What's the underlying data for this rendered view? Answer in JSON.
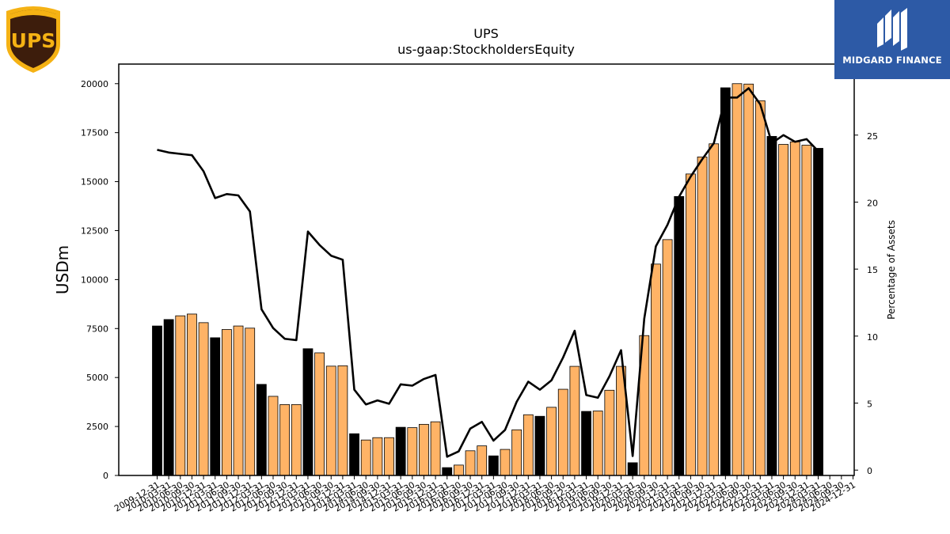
{
  "brand": {
    "left_logo_text": "UPS",
    "right_logo_text": "MIDGARD FINANCE",
    "ups_shield_color": "#3d1d0c",
    "ups_gold_color": "#f5b214",
    "midgard_bg_color": "#2d5aa6"
  },
  "chart_data": {
    "type": "bar",
    "title": "UPS",
    "subtitle": "us-gaap:StockholdersEquity",
    "ylabel": "USDm",
    "y2label": "Percentage of Assets",
    "ylim": [
      0,
      21000
    ],
    "y2lim": [
      -0.4,
      30.3
    ],
    "yticks": [
      0,
      2500,
      5000,
      7500,
      10000,
      12500,
      15000,
      17500,
      20000
    ],
    "y2ticks": [
      0,
      5,
      10,
      15,
      20,
      25
    ],
    "bar_colors": {
      "annual": "#000000",
      "quarterly": "#ffb366",
      "edge": "#000000"
    },
    "line_color": "#000000",
    "categories": [
      "2009-12-31",
      "2010-03-31",
      "2010-06-30",
      "2010-09-30",
      "2010-12-31",
      "2011-03-31",
      "2011-06-30",
      "2011-09-30",
      "2011-12-31",
      "2012-03-31",
      "2012-06-30",
      "2012-09-30",
      "2012-12-31",
      "2013-03-31",
      "2013-06-30",
      "2013-09-30",
      "2013-12-31",
      "2014-03-31",
      "2014-06-30",
      "2014-09-30",
      "2014-12-31",
      "2015-03-31",
      "2015-06-30",
      "2015-09-30",
      "2015-12-31",
      "2016-03-31",
      "2016-06-30",
      "2016-09-30",
      "2016-12-31",
      "2017-03-31",
      "2017-06-30",
      "2017-09-30",
      "2017-12-31",
      "2018-03-31",
      "2018-06-30",
      "2018-09-30",
      "2018-12-31",
      "2019-03-31",
      "2019-06-30",
      "2019-09-30",
      "2019-12-31",
      "2020-03-31",
      "2020-06-30",
      "2020-09-30",
      "2020-12-31",
      "2021-03-31",
      "2021-06-30",
      "2021-09-30",
      "2021-12-31",
      "2022-03-31",
      "2022-06-30",
      "2022-09-30",
      "2022-12-31",
      "2023-03-31",
      "2023-06-30",
      "2023-09-30",
      "2023-12-31",
      "2024-03-31",
      "2024-06-30",
      "2024-09-30",
      "2024-12-31"
    ],
    "series": [
      {
        "name": "",
        "type": "bar",
        "values": [
          7630,
          7960,
          8150,
          8240,
          7800,
          7030,
          7450,
          7630,
          7520,
          4650,
          4040,
          3620,
          3620,
          6470,
          6260,
          5580,
          5600,
          2130,
          1810,
          1930,
          1930,
          2460,
          2440,
          2610,
          2740,
          400,
          530,
          1260,
          1510,
          1000,
          1330,
          2330,
          3100,
          3020,
          3480,
          4400,
          5570,
          3270,
          3290,
          4350,
          5570,
          650,
          7140,
          10790,
          12040,
          14240,
          15390,
          16260,
          16930,
          19790,
          20000,
          19980,
          19130,
          17310,
          16900,
          17030,
          16860,
          16700,
          null,
          null,
          null
        ],
        "annual": [
          true,
          true,
          false,
          false,
          false,
          true,
          false,
          false,
          false,
          true,
          false,
          false,
          false,
          true,
          false,
          false,
          false,
          true,
          false,
          false,
          false,
          true,
          false,
          false,
          false,
          true,
          false,
          false,
          false,
          true,
          false,
          false,
          false,
          true,
          false,
          false,
          false,
          true,
          false,
          false,
          false,
          true,
          false,
          false,
          false,
          true,
          false,
          false,
          false,
          true,
          false,
          false,
          false,
          true,
          false,
          false,
          false,
          true,
          false,
          false,
          false
        ]
      },
      {
        "name": "",
        "type": "line",
        "axis": "right",
        "values": [
          23.9,
          23.7,
          23.6,
          23.5,
          22.3,
          20.3,
          20.6,
          20.5,
          19.3,
          12.0,
          10.6,
          9.8,
          9.7,
          17.8,
          16.8,
          16.0,
          15.7,
          6.0,
          4.9,
          5.2,
          4.95,
          6.4,
          6.3,
          6.8,
          7.1,
          1.0,
          1.4,
          3.1,
          3.6,
          2.2,
          3.0,
          5.1,
          6.6,
          6.0,
          6.7,
          8.4,
          10.4,
          5.6,
          5.4,
          7.0,
          8.95,
          1.05,
          11.3,
          16.7,
          18.3,
          20.4,
          21.9,
          23.2,
          24.4,
          27.8,
          27.8,
          28.5,
          27.3,
          24.4,
          25.0,
          24.5,
          24.7,
          23.8,
          null,
          null,
          null
        ]
      }
    ]
  }
}
